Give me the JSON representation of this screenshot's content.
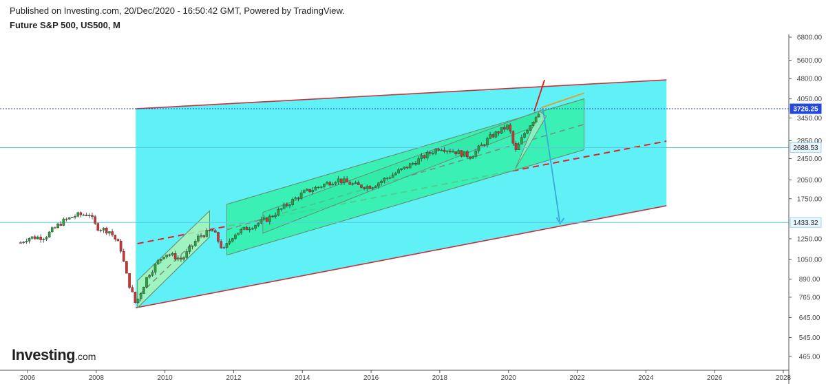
{
  "header": {
    "published": "Published on Investing.com, 20/Dec/2020 - 16:50:42 GMT, Powered by TradingView.",
    "instrument": "Future S&P 500, US500, M"
  },
  "logo": {
    "main": "Investing",
    "suffix": ".com"
  },
  "colors": {
    "outer_channel_fill": "#5ff1f6",
    "inner_channel_fill": "#34f0a8",
    "small_channel_fill": "#a9f3b5",
    "channel_edge": "#c8303a",
    "midline": "#e02020",
    "arrow": "#3aa7d9",
    "hline": "#5cc8e6",
    "price_line": "#2448d8",
    "candle_up": "#2e9e3f",
    "candle_down": "#d33131"
  },
  "chart_data": {
    "type": "candlestick",
    "x_axis": {
      "ticks": [
        "2006",
        "2008",
        "2010",
        "2012",
        "2014",
        "2016",
        "2018",
        "2020",
        "2022",
        "2024",
        "2026",
        "2028"
      ],
      "range": [
        2005.8,
        2028.0
      ]
    },
    "y_axis": {
      "scale": "log",
      "ticks": [
        "6800.00",
        "5600.00",
        "4800.00",
        "4050.00",
        "3450.00",
        "2850.00",
        "2450.00",
        "2050.00",
        "1750.00",
        "1250.00",
        "1050.00",
        "890.00",
        "765.00",
        "645.00",
        "545.00",
        "465.00"
      ],
      "range": [
        430,
        7400
      ],
      "position": "right"
    },
    "price_labels": [
      {
        "value": "3726.25",
        "style": "current"
      },
      {
        "value": "2688.53",
        "style": "level"
      },
      {
        "value": "1433.32",
        "style": "level"
      }
    ],
    "horizontal_levels": [
      3726.25,
      2688.53,
      1433.32
    ],
    "monthly_closes": [
      {
        "year": 2005.8,
        "close": 1210
      },
      {
        "year": 2006.0,
        "close": 1260
      },
      {
        "year": 2006.5,
        "close": 1270
      },
      {
        "year": 2007.0,
        "close": 1440
      },
      {
        "year": 2007.4,
        "close": 1520
      },
      {
        "year": 2007.8,
        "close": 1540
      },
      {
        "year": 2008.0,
        "close": 1380
      },
      {
        "year": 2008.4,
        "close": 1330
      },
      {
        "year": 2008.7,
        "close": 1170
      },
      {
        "year": 2008.9,
        "close": 900
      },
      {
        "year": 2009.15,
        "close": 720
      },
      {
        "year": 2009.5,
        "close": 920
      },
      {
        "year": 2010.0,
        "close": 1110
      },
      {
        "year": 2010.5,
        "close": 1050
      },
      {
        "year": 2011.0,
        "close": 1280
      },
      {
        "year": 2011.4,
        "close": 1340
      },
      {
        "year": 2011.7,
        "close": 1130
      },
      {
        "year": 2012.0,
        "close": 1300
      },
      {
        "year": 2013.0,
        "close": 1480
      },
      {
        "year": 2014.0,
        "close": 1830
      },
      {
        "year": 2015.0,
        "close": 2060
      },
      {
        "year": 2015.6,
        "close": 1950
      },
      {
        "year": 2016.0,
        "close": 1940
      },
      {
        "year": 2017.0,
        "close": 2270
      },
      {
        "year": 2018.0,
        "close": 2700
      },
      {
        "year": 2018.9,
        "close": 2500
      },
      {
        "year": 2019.5,
        "close": 2960
      },
      {
        "year": 2020.0,
        "close": 3230
      },
      {
        "year": 2020.2,
        "close": 2580
      },
      {
        "year": 2020.5,
        "close": 3100
      },
      {
        "year": 2020.95,
        "close": 3726
      }
    ],
    "annotations": [
      {
        "name": "outer-channel",
        "type": "parallel-channel",
        "upper": [
          [
            2009.15,
            3726
          ],
          [
            2024.6,
            4750
          ]
        ],
        "lower": [
          [
            2009.15,
            700
          ],
          [
            2024.6,
            1650
          ]
        ],
        "midline": [
          [
            2009.2,
            1200
          ],
          [
            2024.6,
            2840
          ]
        ]
      },
      {
        "name": "inner-channel",
        "type": "parallel-channel",
        "upper": [
          [
            2011.8,
            1670
          ],
          [
            2022.2,
            4050
          ]
        ],
        "lower": [
          [
            2011.8,
            1090
          ],
          [
            2022.2,
            2640
          ]
        ]
      },
      {
        "name": "small-channel-2009",
        "type": "parallel-channel",
        "upper": [
          [
            2009.2,
            880
          ],
          [
            2011.3,
            1580
          ]
        ],
        "lower": [
          [
            2009.2,
            700
          ],
          [
            2011.3,
            1270
          ]
        ]
      },
      {
        "name": "projection-arrow",
        "type": "arrow",
        "from": [
          2021.0,
          3726
        ],
        "to": [
          2021.5,
          1420
        ]
      }
    ]
  }
}
